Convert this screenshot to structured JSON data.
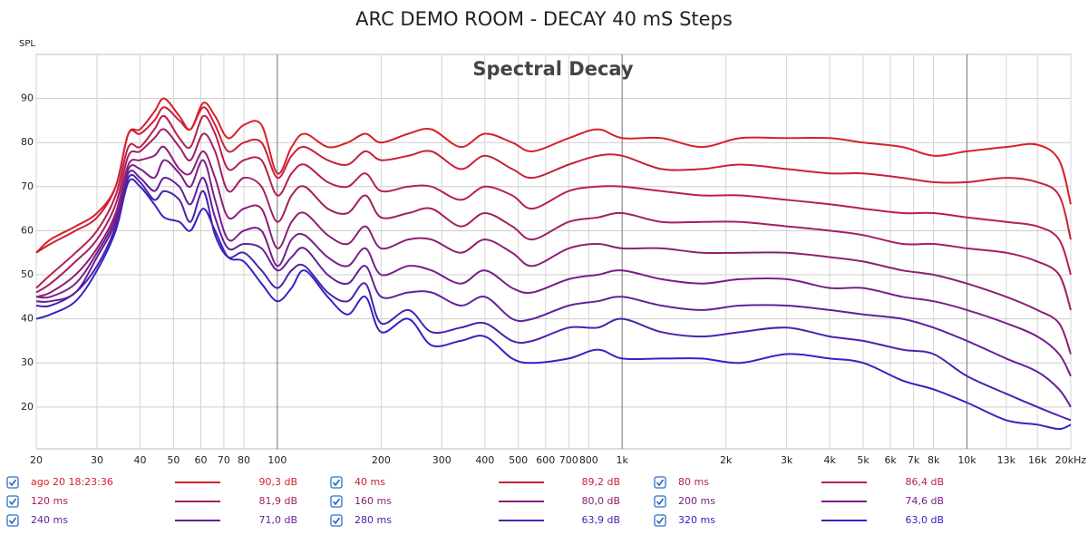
{
  "chart_data": {
    "type": "line",
    "title": "ARC DEMO ROOM - DECAY 40 mS Steps",
    "subtitle": "Spectral Decay",
    "y_label": "SPL",
    "log_x": true,
    "grid": true,
    "xlim": [
      20,
      20000
    ],
    "ylim": [
      10.5,
      100
    ],
    "xticks": [
      20,
      30,
      40,
      50,
      60,
      70,
      80,
      100,
      200,
      300,
      400,
      500,
      600,
      700,
      800,
      {
        "value": 1000,
        "label": "1k"
      },
      {
        "value": 2000,
        "label": "2k"
      },
      {
        "value": 3000,
        "label": "3k"
      },
      {
        "value": 4000,
        "label": "4k"
      },
      {
        "value": 5000,
        "label": "5k"
      },
      {
        "value": 6000,
        "label": "6k"
      },
      {
        "value": 7000,
        "label": "7k"
      },
      {
        "value": 8000,
        "label": "8k"
      },
      {
        "value": 10000,
        "label": "10k"
      },
      {
        "value": 13000,
        "label": "13k"
      },
      {
        "value": 16000,
        "label": "16k"
      },
      {
        "value": 20000,
        "label": "20kHz"
      }
    ],
    "yticks": [
      20,
      30,
      40,
      50,
      60,
      70,
      80,
      90
    ],
    "x": [
      20,
      22,
      26,
      30,
      34,
      37,
      40,
      44,
      47,
      52,
      56,
      61,
      66,
      72,
      80,
      90,
      100,
      110,
      120,
      140,
      160,
      180,
      200,
      240,
      280,
      340,
      400,
      480,
      550,
      700,
      850,
      1000,
      1300,
      1700,
      2200,
      3000,
      4000,
      5000,
      6500,
      8000,
      10000,
      13000,
      16000,
      18500,
      20000
    ],
    "series": [
      {
        "name": "ago 20 18:23:36",
        "legend_value": "90,3 dB",
        "color": "#d8202a",
        "values": [
          55,
          58,
          61,
          64,
          70,
          82,
          83,
          87,
          90,
          86,
          83,
          89,
          86,
          81,
          84,
          84,
          73,
          79,
          82,
          79,
          80,
          82,
          80,
          82,
          83,
          79,
          82,
          80,
          78,
          81,
          83,
          81,
          81,
          79,
          81,
          81,
          81,
          80,
          79,
          77,
          78,
          79,
          79.5,
          76,
          66
        ]
      },
      {
        "name": "40 ms",
        "legend_value": "89,2 dB",
        "color": "#c9203b",
        "values": [
          55,
          57,
          60,
          63,
          70,
          82,
          82,
          85,
          88,
          85,
          83,
          88,
          84,
          78,
          80,
          80,
          72,
          77,
          79,
          76,
          75,
          78,
          76,
          77,
          78,
          74,
          77,
          74,
          72,
          75,
          77,
          77,
          74,
          74,
          75,
          74,
          73,
          73,
          72,
          71,
          71,
          72,
          71,
          68,
          58
        ]
      },
      {
        "name": "80 ms",
        "legend_value": "86,4 dB",
        "color": "#b7204e",
        "values": [
          47,
          50,
          55,
          60,
          68,
          79,
          79,
          83,
          86,
          81,
          79,
          86,
          82,
          74,
          76,
          76,
          68,
          73,
          75,
          71,
          70,
          73,
          69,
          70,
          70,
          67,
          70,
          68,
          65,
          69,
          70,
          70,
          69,
          68,
          68,
          67,
          66,
          65,
          64,
          64,
          63,
          62,
          61,
          58,
          50
        ]
      },
      {
        "name": "120 ms",
        "legend_value": "81,9 dB",
        "color": "#a21f62",
        "values": [
          46,
          48,
          53,
          58,
          66,
          77,
          78,
          81,
          83,
          79,
          76,
          82,
          78,
          69,
          72,
          70,
          62,
          68,
          70,
          65,
          64,
          68,
          63,
          64,
          65,
          61,
          64,
          61,
          58,
          62,
          63,
          64,
          62,
          62,
          62,
          61,
          60,
          59,
          57,
          57,
          56,
          55,
          53,
          50,
          42
        ]
      },
      {
        "name": "160 ms",
        "legend_value": "80,0 dB",
        "color": "#8d1f75",
        "values": [
          45,
          46,
          50,
          56,
          64,
          75,
          76,
          77,
          79,
          74,
          73,
          78,
          72,
          63,
          65,
          65,
          56,
          62,
          64,
          59,
          57,
          61,
          56,
          58,
          58,
          55,
          58,
          55,
          52,
          56,
          57,
          56,
          56,
          55,
          55,
          55,
          54,
          53,
          51,
          50,
          48,
          45,
          42,
          39,
          32
        ]
      },
      {
        "name": "200 ms",
        "legend_value": "74,6 dB",
        "color": "#781f88",
        "values": [
          45,
          45,
          48,
          55,
          63,
          74,
          74,
          72,
          76,
          73,
          70,
          76,
          67,
          58,
          60,
          60,
          52,
          58,
          59,
          54,
          52,
          56,
          50,
          52,
          51,
          48,
          51,
          47,
          46,
          49,
          50,
          51,
          49,
          48,
          49,
          49,
          47,
          47,
          45,
          44,
          42,
          39,
          36,
          32,
          27
        ]
      },
      {
        "name": "240 ms",
        "legend_value": "71,0 dB",
        "color": "#63209b",
        "values": [
          44,
          44,
          46,
          54,
          62,
          73,
          72,
          69,
          72,
          70,
          66,
          72,
          63,
          56,
          57,
          56,
          51,
          54,
          56,
          50,
          48,
          52,
          45,
          46,
          46,
          43,
          45,
          40,
          40,
          43,
          44,
          45,
          43,
          42,
          43,
          43,
          42,
          41,
          40,
          38,
          35,
          31,
          28,
          24,
          20
        ]
      },
      {
        "name": "280 ms",
        "legend_value": "63,9 dB",
        "color": "#4d21ae",
        "values": [
          43,
          43,
          46,
          52,
          61,
          72,
          71,
          67,
          69,
          67,
          62,
          69,
          59,
          54,
          55,
          51,
          47,
          51,
          52,
          46,
          44,
          48,
          39,
          42,
          37,
          38,
          39,
          35,
          35,
          38,
          38,
          40,
          37,
          36,
          37,
          38,
          36,
          35,
          33,
          32,
          27,
          23,
          20,
          18,
          17
        ]
      },
      {
        "name": "320 ms",
        "legend_value": "63,0 dB",
        "color": "#3423c4",
        "values": [
          40,
          41,
          44,
          51,
          60,
          71,
          70,
          66,
          63,
          62,
          60,
          65,
          60,
          54,
          53,
          48,
          44,
          47,
          51,
          45,
          41,
          45,
          37,
          40,
          34,
          35,
          36,
          31,
          30,
          31,
          33,
          31,
          31,
          31,
          30,
          32,
          31,
          30,
          26,
          24,
          21,
          17,
          16,
          15,
          16
        ]
      }
    ]
  }
}
